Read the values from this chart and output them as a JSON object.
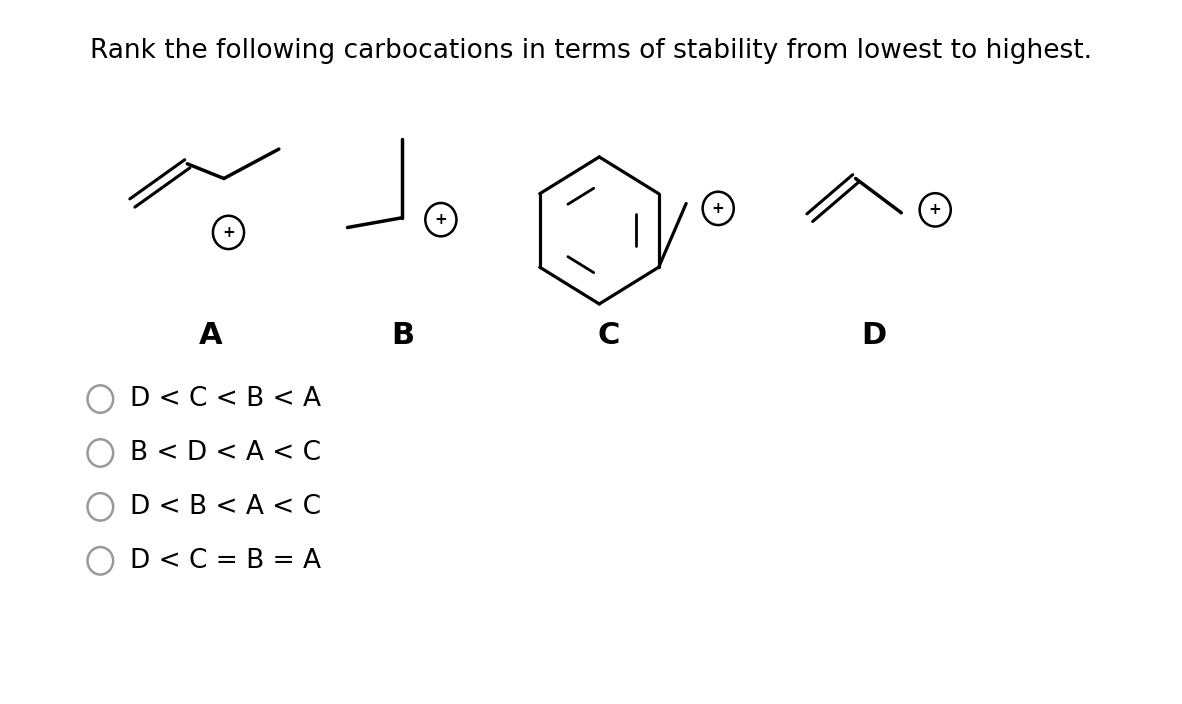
{
  "title": "Rank the following carbocations in terms of stability from lowest to highest.",
  "title_fontsize": 19,
  "background_color": "#ffffff",
  "labels": [
    "A",
    "B",
    "C",
    "D"
  ],
  "label_fontsize": 22,
  "choices": [
    "D < C < B < A",
    "B < D < A < C",
    "D < B < A < C",
    "D < C = B = A"
  ],
  "choice_fontsize": 19
}
